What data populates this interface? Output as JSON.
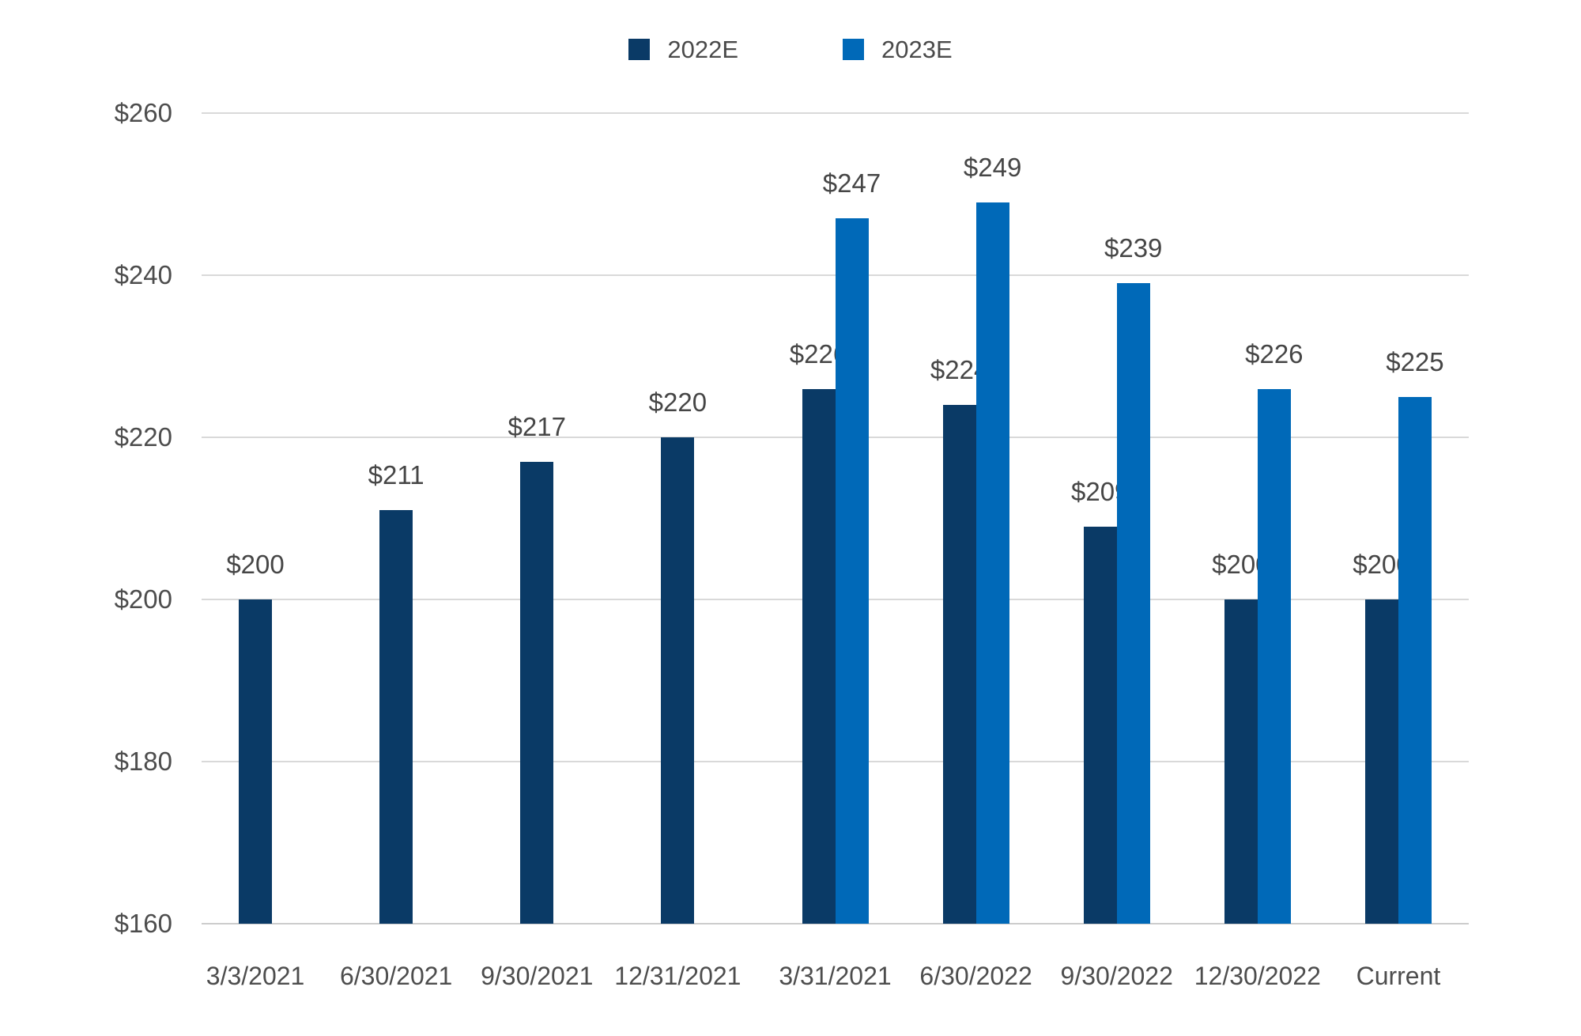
{
  "chart_data": {
    "type": "bar",
    "title": "",
    "xlabel": "",
    "ylabel": "",
    "grid": true,
    "legend_position": "top",
    "value_prefix": "$",
    "categories": [
      "3/3/2021",
      "6/30/2021",
      "9/30/2021",
      "12/31/2021",
      "3/31/2021",
      "6/30/2022",
      "9/30/2022",
      "12/30/2022",
      "Current"
    ],
    "series": [
      {
        "name": "2022E",
        "color": "#0a3a66",
        "values": [
          200,
          211,
          217,
          220,
          226,
          224,
          209,
          200,
          200
        ],
        "labels": [
          "$200",
          "$211",
          "$217",
          "$220",
          "$226",
          "$224",
          "$209",
          "$200",
          "$200"
        ]
      },
      {
        "name": "2023E",
        "color": "#0069b8",
        "values": [
          null,
          null,
          null,
          null,
          247,
          249,
          239,
          226,
          225
        ],
        "labels": [
          null,
          null,
          null,
          null,
          "$247",
          "$249",
          "$239",
          "$226",
          "$225"
        ]
      }
    ],
    "ylim": [
      160,
      260
    ],
    "yticks": [
      {
        "value": 160,
        "label": "$160"
      },
      {
        "value": 180,
        "label": "$180"
      },
      {
        "value": 200,
        "label": "$200"
      },
      {
        "value": 220,
        "label": "$220"
      },
      {
        "value": 240,
        "label": "$240"
      },
      {
        "value": 260,
        "label": "$260"
      }
    ]
  },
  "colors": {
    "background": "#ffffff",
    "gridline": "#d9d9d9",
    "axis_line": "#cccccc",
    "axis_text": "#4d4d4d",
    "data_label_text": "#464646"
  }
}
